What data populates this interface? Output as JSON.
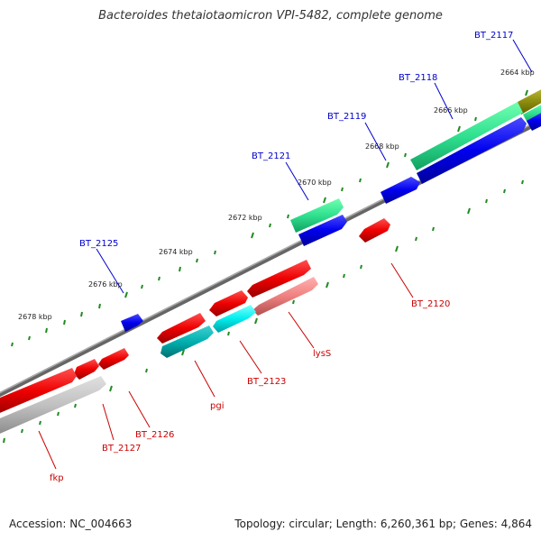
{
  "title": "Bacteroides thetaiotaomicron VPI-5482, complete genome",
  "footer": {
    "accession": "Accession: NC_004663",
    "topology": "Topology: circular; Length: 6,260,361 bp; Genes: 4,864"
  },
  "colors": {
    "backbone": "#808080",
    "forward_gene": "#0000ff",
    "reverse_gene": "#ff0000",
    "forward_label": "#0000cc",
    "reverse_label": "#cc0000",
    "tick": "#228b22"
  },
  "scale_labels": [
    {
      "id": "t2664",
      "text": "2664 kbp"
    },
    {
      "id": "t2666",
      "text": "2666 kbp"
    },
    {
      "id": "t2668",
      "text": "2668 kbp"
    },
    {
      "id": "t2670",
      "text": "2670 kbp"
    },
    {
      "id": "t2672",
      "text": "2672 kbp"
    },
    {
      "id": "t2674",
      "text": "2674 kbp"
    },
    {
      "id": "t2676",
      "text": "2676 kbp"
    },
    {
      "id": "t2678",
      "text": "2678 kbp"
    }
  ],
  "gene_labels": [
    {
      "id": "bt2117",
      "text": "BT_2117",
      "strand": "forward"
    },
    {
      "id": "bt2118",
      "text": "BT_2118",
      "strand": "forward"
    },
    {
      "id": "bt2119",
      "text": "BT_2119",
      "strand": "forward"
    },
    {
      "id": "bt2121",
      "text": "BT_2121",
      "strand": "forward"
    },
    {
      "id": "bt2125",
      "text": "BT_2125",
      "strand": "forward"
    },
    {
      "id": "bt2120",
      "text": "BT_2120",
      "strand": "reverse"
    },
    {
      "id": "lyss",
      "text": "lysS",
      "strand": "reverse"
    },
    {
      "id": "bt2123",
      "text": "BT_2123",
      "strand": "reverse"
    },
    {
      "id": "pgi",
      "text": "pgi",
      "strand": "reverse"
    },
    {
      "id": "bt2126",
      "text": "BT_2126",
      "strand": "reverse"
    },
    {
      "id": "bt2127",
      "text": "BT_2127",
      "strand": "reverse"
    },
    {
      "id": "fkp",
      "text": "fkp",
      "strand": "reverse"
    }
  ]
}
